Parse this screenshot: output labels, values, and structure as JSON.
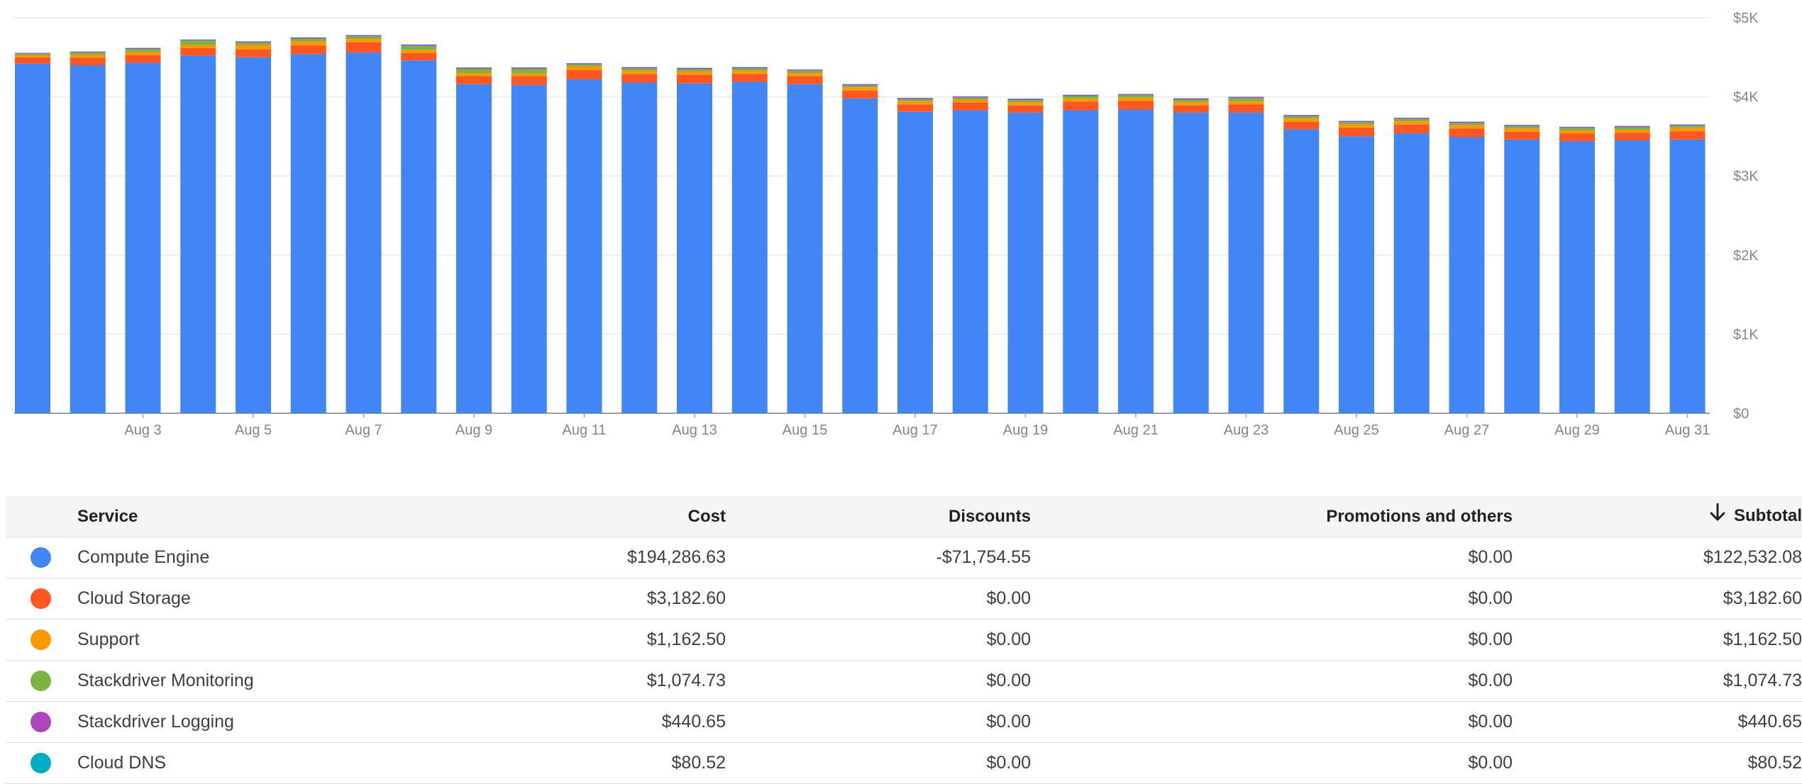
{
  "chart_data": {
    "type": "bar",
    "stacked": true,
    "categories": [
      "Aug 1",
      "Aug 2",
      "Aug 3",
      "Aug 4",
      "Aug 5",
      "Aug 6",
      "Aug 7",
      "Aug 8",
      "Aug 9",
      "Aug 10",
      "Aug 11",
      "Aug 12",
      "Aug 13",
      "Aug 14",
      "Aug 15",
      "Aug 16",
      "Aug 17",
      "Aug 18",
      "Aug 19",
      "Aug 20",
      "Aug 21",
      "Aug 22",
      "Aug 23",
      "Aug 24",
      "Aug 25",
      "Aug 26",
      "Aug 27",
      "Aug 28",
      "Aug 29",
      "Aug 30",
      "Aug 31"
    ],
    "x_tick_labels": [
      "Aug 3",
      "Aug 5",
      "Aug 7",
      "Aug 9",
      "Aug 11",
      "Aug 13",
      "Aug 15",
      "Aug 17",
      "Aug 19",
      "Aug 21",
      "Aug 23",
      "Aug 25",
      "Aug 27",
      "Aug 29",
      "Aug 31"
    ],
    "y_tick_labels": [
      "$0",
      "$1K",
      "$2K",
      "$3K",
      "$4K",
      "$5K"
    ],
    "ylim": [
      0,
      5000
    ],
    "grid": true,
    "y_axis_position": "right",
    "series": [
      {
        "name": "Compute Engine",
        "color": "#4285f4",
        "values": [
          4420,
          4400,
          4430,
          4520,
          4500,
          4540,
          4560,
          4460,
          4160,
          4150,
          4220,
          4180,
          4170,
          4190,
          4160,
          3980,
          3810,
          3830,
          3800,
          3830,
          3840,
          3800,
          3800,
          3590,
          3500,
          3540,
          3490,
          3460,
          3440,
          3450,
          3460
        ]
      },
      {
        "name": "Cloud Storage",
        "color": "#ff5722",
        "values": [
          80,
          95,
          95,
          95,
          100,
          110,
          130,
          95,
          100,
          110,
          120,
          110,
          110,
          100,
          100,
          100,
          95,
          95,
          90,
          110,
          110,
          95,
          105,
          95,
          110,
          110,
          110,
          100,
          95,
          95,
          105
        ]
      },
      {
        "name": "Support",
        "color": "#ff9800",
        "values": [
          25,
          35,
          40,
          40,
          55,
          50,
          40,
          40,
          40,
          35,
          45,
          40,
          40,
          40,
          40,
          40,
          40,
          40,
          40,
          40,
          40,
          40,
          40,
          40,
          40,
          40,
          40,
          40,
          40,
          40,
          40
        ]
      },
      {
        "name": "Stackdriver Monitoring",
        "color": "#7cb342",
        "values": [
          20,
          30,
          40,
          55,
          30,
          35,
          35,
          50,
          55,
          60,
          25,
          30,
          30,
          30,
          30,
          25,
          25,
          25,
          30,
          30,
          30,
          30,
          40,
          30,
          30,
          30,
          30,
          30,
          30,
          30,
          30
        ]
      },
      {
        "name": "Stackdriver Logging",
        "color": "#ab47bc",
        "values": [
          10,
          12,
          12,
          12,
          14,
          14,
          14,
          14,
          14,
          14,
          14,
          14,
          14,
          14,
          14,
          14,
          14,
          14,
          14,
          14,
          14,
          14,
          14,
          14,
          14,
          14,
          14,
          14,
          14,
          14,
          14
        ]
      },
      {
        "name": "Cloud DNS",
        "color": "#00acc1",
        "values": [
          2,
          2,
          3,
          3,
          3,
          3,
          3,
          3,
          3,
          3,
          3,
          3,
          3,
          3,
          3,
          3,
          3,
          3,
          3,
          3,
          3,
          3,
          3,
          3,
          3,
          3,
          3,
          3,
          3,
          3,
          3
        ]
      }
    ]
  },
  "table": {
    "headers": {
      "service": "Service",
      "cost": "Cost",
      "discounts": "Discounts",
      "promotions": "Promotions and others",
      "subtotal": "Subtotal"
    },
    "sort_icon": "arrow-down-icon",
    "rows": [
      {
        "color": "#4285f4",
        "service": "Compute Engine",
        "cost": "$194,286.63",
        "discounts": "-$71,754.55",
        "promotions": "$0.00",
        "subtotal": "$122,532.08"
      },
      {
        "color": "#ff5722",
        "service": "Cloud Storage",
        "cost": "$3,182.60",
        "discounts": "$0.00",
        "promotions": "$0.00",
        "subtotal": "$3,182.60"
      },
      {
        "color": "#ff9800",
        "service": "Support",
        "cost": "$1,162.50",
        "discounts": "$0.00",
        "promotions": "$0.00",
        "subtotal": "$1,162.50"
      },
      {
        "color": "#7cb342",
        "service": "Stackdriver Monitoring",
        "cost": "$1,074.73",
        "discounts": "$0.00",
        "promotions": "$0.00",
        "subtotal": "$1,074.73"
      },
      {
        "color": "#ab47bc",
        "service": "Stackdriver Logging",
        "cost": "$440.65",
        "discounts": "$0.00",
        "promotions": "$0.00",
        "subtotal": "$440.65"
      },
      {
        "color": "#00acc1",
        "service": "Cloud DNS",
        "cost": "$80.52",
        "discounts": "$0.00",
        "promotions": "$0.00",
        "subtotal": "$80.52"
      }
    ]
  }
}
